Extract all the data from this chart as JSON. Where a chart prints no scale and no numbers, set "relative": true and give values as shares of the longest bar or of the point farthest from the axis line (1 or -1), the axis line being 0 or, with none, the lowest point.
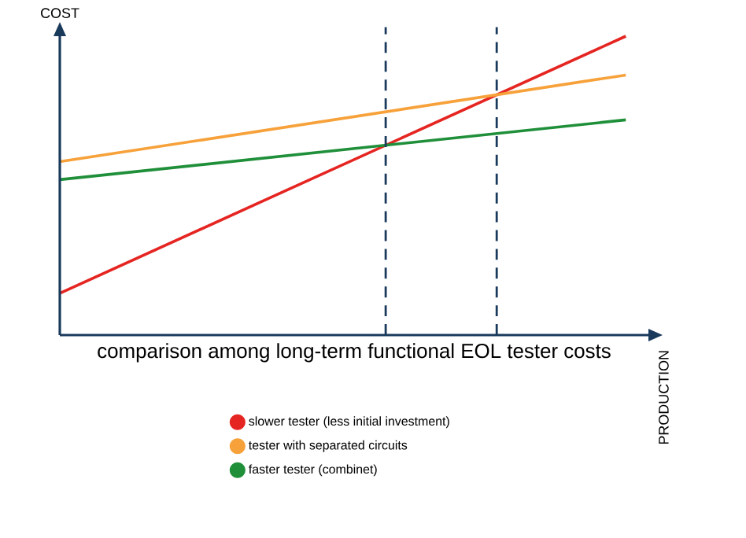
{
  "chart_data": {
    "type": "line",
    "relative": true,
    "title": "comparison among long-term functional EOL tester costs",
    "ylabel": "COST",
    "annotations": [
      "PRODUCTION"
    ],
    "legend": "bottom",
    "categories": [
      null,
      null
    ],
    "series": [
      {
        "name": "slower tester (less initial investment)",
        "color": "#e52521",
        "values": [
          0.14,
          1.0
        ]
      },
      {
        "name": "tester with separated circuits",
        "color": "#f7a13a",
        "values": [
          0.58,
          0.87
        ]
      },
      {
        "name": "faster tester (combinet)",
        "color": "#1f8f3a",
        "values": [
          0.52,
          0.72
        ]
      }
    ]
  }
}
